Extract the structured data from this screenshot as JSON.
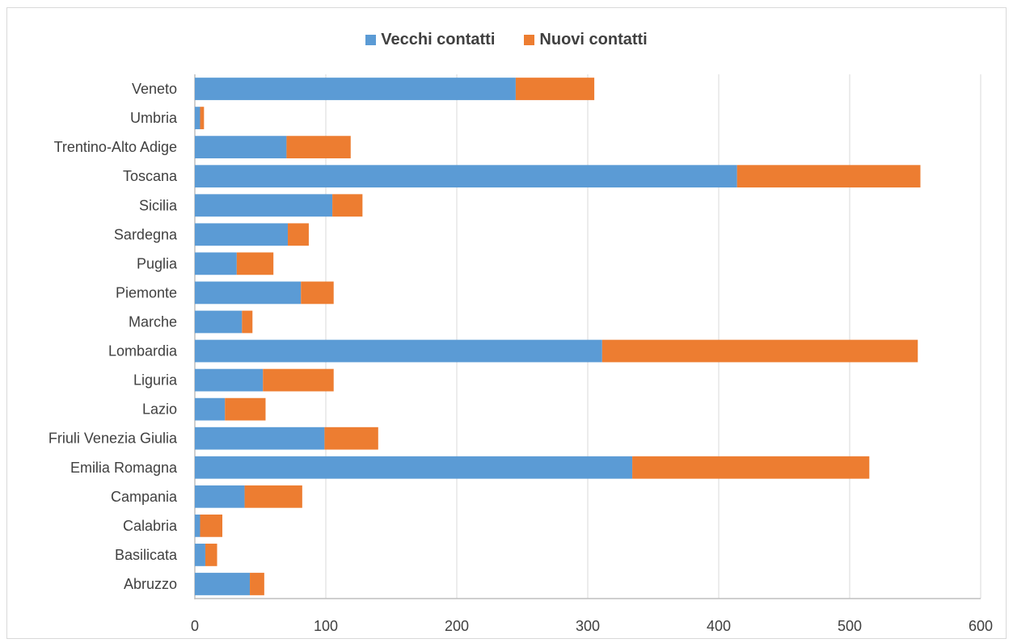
{
  "chart_data": {
    "type": "bar",
    "orientation": "horizontal",
    "stacked": true,
    "title": "",
    "xlabel": "",
    "ylabel": "",
    "categories": [
      "Veneto",
      "Umbria",
      "Trentino-Alto Adige",
      "Toscana",
      "Sicilia",
      "Sardegna",
      "Puglia",
      "Piemonte",
      "Marche",
      "Lombardia",
      "Liguria",
      "Lazio",
      "Friuli Venezia Giulia",
      "Emilia Romagna",
      "Campania",
      "Calabria",
      "Basilicata",
      "Abruzzo"
    ],
    "series": [
      {
        "name": "Vecchi contatti",
        "color": "#5b9bd5",
        "values": [
          245,
          4,
          70,
          414,
          105,
          71,
          32,
          81,
          36,
          311,
          52,
          23,
          99,
          334,
          38,
          4,
          8,
          42
        ]
      },
      {
        "name": "Nuovi contatti",
        "color": "#ed7d31",
        "values": [
          60,
          3,
          49,
          140,
          23,
          16,
          28,
          25,
          8,
          241,
          54,
          31,
          41,
          181,
          44,
          17,
          9,
          11
        ]
      }
    ],
    "xlim": [
      0,
      600
    ],
    "xticks": [
      "0",
      "100",
      "200",
      "300",
      "400",
      "500",
      "600"
    ],
    "grid": "vertical",
    "legend_position": "top"
  }
}
